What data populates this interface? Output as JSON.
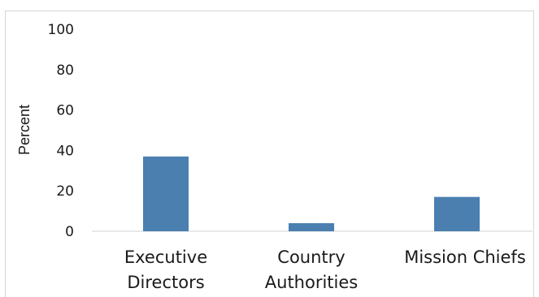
{
  "chart_data": {
    "type": "bar",
    "categories": [
      [
        "Executive",
        "Directors"
      ],
      [
        "Country",
        "Authorities"
      ],
      [
        "Mission Chiefs"
      ]
    ],
    "values": [
      37,
      4,
      17
    ],
    "ylabel": "Percent",
    "ylim": [
      0,
      100
    ],
    "yticks": [
      "0",
      "20",
      "40",
      "60",
      "80",
      "100"
    ],
    "grid": false,
    "bar_color": "#4a7fb0"
  }
}
